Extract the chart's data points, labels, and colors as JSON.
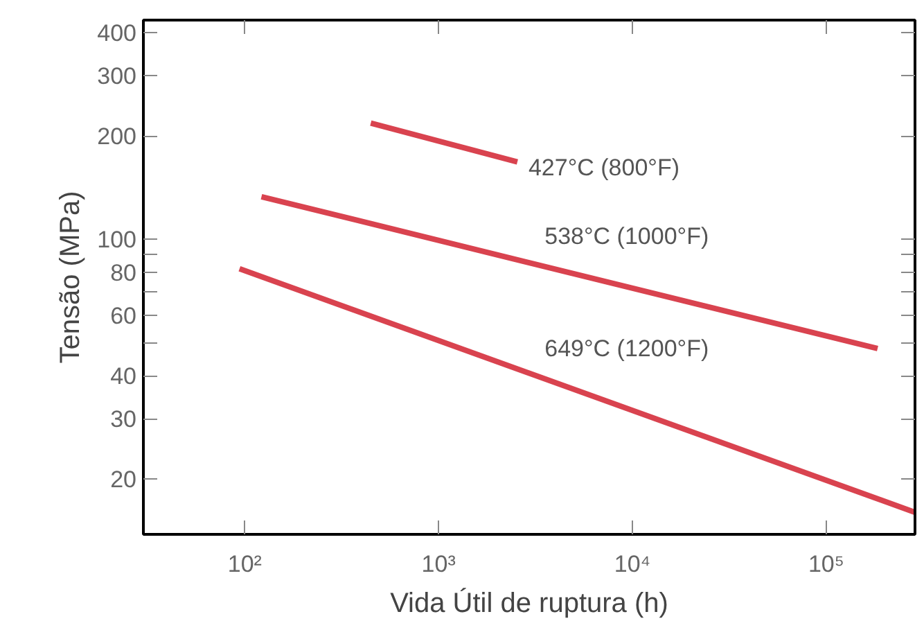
{
  "chart_data": {
    "type": "line",
    "xlabel": "Vida Útil de ruptura (h)",
    "ylabel": "Tensão (MPa)",
    "log": "xy",
    "grid": false,
    "marker": "none",
    "line_style": "solid",
    "xlim": [
      30,
      287000
    ],
    "ylim": [
      13.8,
      435
    ],
    "xticks": [
      {
        "value": 100,
        "label": "10²"
      },
      {
        "value": 1000,
        "label": "10³"
      },
      {
        "value": 10000,
        "label": "10⁴"
      },
      {
        "value": 100000,
        "label": "10⁵"
      }
    ],
    "yticks": [
      20,
      30,
      40,
      {
        "value": 50,
        "label": null
      },
      60,
      {
        "value": 70,
        "label": null
      },
      80,
      {
        "value": 90,
        "label": null
      },
      100,
      200,
      300,
      400
    ],
    "series": [
      {
        "name": "427°C (800°F)",
        "x": [
          447,
          2550
        ],
        "values": [
          218,
          168
        ],
        "color": "#d9434f"
      },
      {
        "name": "538°C (1000°F)",
        "x": [
          122,
          184000
        ],
        "values": [
          133,
          48
        ],
        "color": "#d9434f"
      },
      {
        "name": "649°C (1200°F)",
        "x": [
          94,
          287000
        ],
        "values": [
          82,
          16
        ],
        "color": "#d9434f"
      }
    ]
  }
}
